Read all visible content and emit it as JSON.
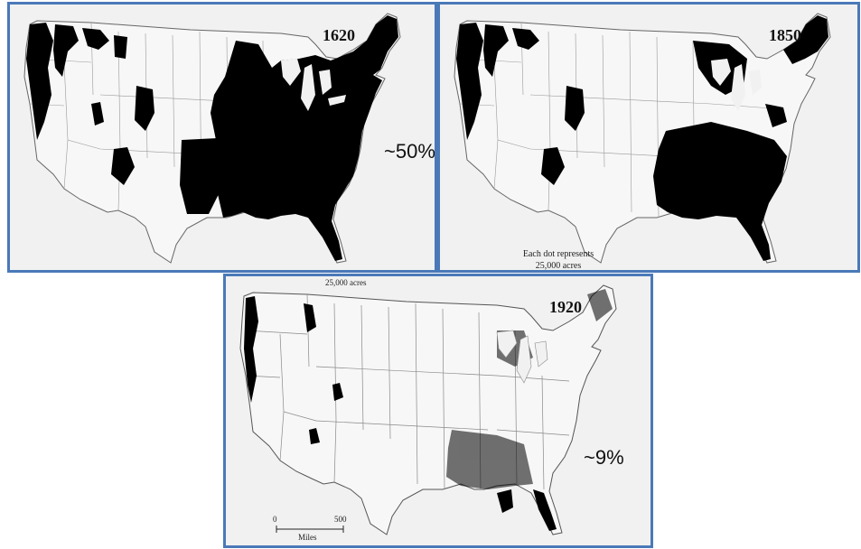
{
  "panels": [
    {
      "year": "1620",
      "percent": "~50%"
    },
    {
      "year": "1850",
      "legend_line1": "Each dot represents",
      "legend_line2": "25,000 acres"
    },
    {
      "year": "1920",
      "percent": "~9%",
      "legend_top": "25,000 acres",
      "scale": {
        "start": "0",
        "end": "500",
        "unit": "Miles"
      }
    }
  ],
  "colors": {
    "border": "#4a79b8",
    "land": "#f1f1f1",
    "forest": "#000000"
  }
}
